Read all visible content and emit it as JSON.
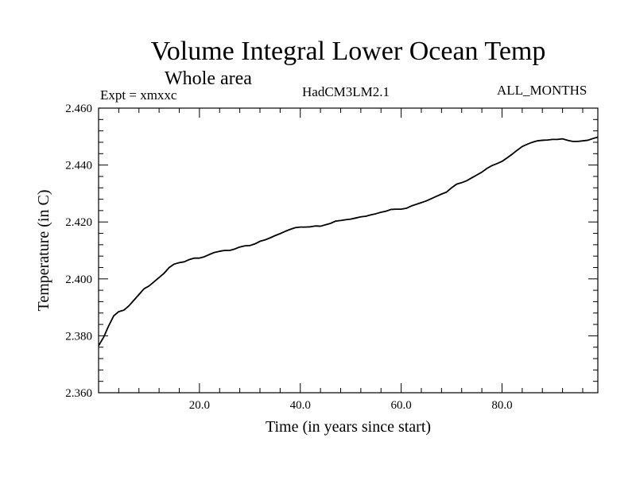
{
  "header": {
    "expt_label": "Expt = xmxxc",
    "model_label": "HadCM3LM2.1",
    "months_label": "ALL_MONTHS"
  },
  "chart_data": {
    "type": "line",
    "title": "Volume Integral Lower Ocean Temp",
    "subtitle": "Whole area",
    "xlabel": "Time (in years since start)",
    "ylabel": "Temperature (in C)",
    "xlim": [
      0,
      99
    ],
    "ylim": [
      2.36,
      2.46
    ],
    "xticks": [
      20,
      40,
      60,
      80
    ],
    "xtick_labels": [
      "20.0",
      "40.0",
      "60.0",
      "80.0"
    ],
    "yticks": [
      2.36,
      2.38,
      2.4,
      2.42,
      2.44,
      2.46
    ],
    "ytick_labels": [
      "2.360",
      "2.380",
      "2.400",
      "2.420",
      "2.440",
      "2.460"
    ],
    "grid": false,
    "series": [
      {
        "x": [
          0,
          1,
          2,
          3,
          4,
          5,
          6,
          7,
          8,
          9,
          10,
          11,
          12,
          13,
          14,
          15,
          16,
          17,
          18,
          19,
          20,
          21,
          22,
          23,
          24,
          25,
          26,
          27,
          28,
          29,
          30,
          31,
          32,
          33,
          34,
          35,
          36,
          37,
          38,
          39,
          40,
          41,
          42,
          43,
          44,
          45,
          46,
          47,
          48,
          49,
          50,
          51,
          52,
          53,
          54,
          55,
          56,
          57,
          58,
          59,
          60,
          61,
          62,
          63,
          64,
          65,
          66,
          67,
          68,
          69,
          70,
          71,
          72,
          73,
          74,
          75,
          76,
          77,
          78,
          79,
          80,
          81,
          82,
          83,
          84,
          85,
          86,
          87,
          88,
          89,
          90,
          91,
          92,
          93,
          94,
          95,
          96,
          97,
          98,
          99
        ],
        "values": [
          2.3765,
          2.3795,
          2.3835,
          2.387,
          2.3885,
          2.389,
          2.3905,
          2.3925,
          2.3945,
          2.3965,
          2.3975,
          2.399,
          2.4005,
          2.402,
          2.404,
          2.4052,
          2.4057,
          2.406,
          2.4068,
          2.4073,
          2.4073,
          2.4078,
          2.4086,
          2.4093,
          2.4097,
          2.41,
          2.41,
          2.4105,
          2.4112,
          2.4116,
          2.4117,
          2.4123,
          2.4132,
          2.4137,
          2.4144,
          2.4152,
          2.4159,
          2.4167,
          2.4174,
          2.418,
          2.4182,
          2.4182,
          2.4183,
          2.4186,
          2.4185,
          2.419,
          2.4195,
          2.4203,
          2.4205,
          2.4208,
          2.421,
          2.4214,
          2.4218,
          2.422,
          2.4225,
          2.4229,
          2.4234,
          2.4238,
          2.4244,
          2.4245,
          2.4245,
          2.4248,
          2.4256,
          2.4262,
          2.4268,
          2.4274,
          2.4282,
          2.429,
          2.4298,
          2.4305,
          2.432,
          2.4333,
          2.4338,
          2.4345,
          2.4355,
          2.4365,
          2.4375,
          2.4388,
          2.4398,
          2.4405,
          2.4413,
          2.4425,
          2.4438,
          2.4452,
          2.4465,
          2.4473,
          2.448,
          2.4485,
          2.4487,
          2.4488,
          2.449,
          2.449,
          2.4492,
          2.4487,
          2.4483,
          2.4483,
          2.4485,
          2.4487,
          2.4493,
          2.4498
        ]
      }
    ]
  }
}
